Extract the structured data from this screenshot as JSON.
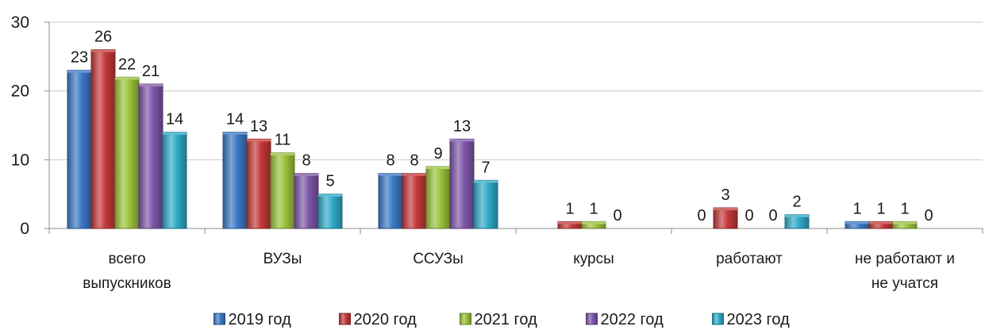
{
  "chart_data": {
    "type": "bar",
    "title": "",
    "xlabel": "",
    "ylabel": "",
    "ylim": [
      0,
      30
    ],
    "yticks": [
      0,
      10,
      20,
      30
    ],
    "grid": true,
    "legend_position": "bottom",
    "categories": [
      [
        "всего",
        "выпускников"
      ],
      [
        "ВУЗы"
      ],
      [
        "ССУЗы"
      ],
      [
        "курсы"
      ],
      [
        "работают"
      ],
      [
        "не работают и",
        "не учатся"
      ]
    ],
    "series": [
      {
        "name": "2019 год",
        "color": "#3a78c4",
        "values": [
          23,
          14,
          8,
          null,
          0,
          1
        ]
      },
      {
        "name": "2020 год",
        "color": "#c43838",
        "values": [
          26,
          13,
          8,
          1,
          3,
          1
        ]
      },
      {
        "name": "2021 год",
        "color": "#9bc23c",
        "values": [
          22,
          11,
          9,
          1,
          0,
          1
        ]
      },
      {
        "name": "2022 год",
        "color": "#7d56a8",
        "values": [
          21,
          8,
          13,
          0,
          0,
          0
        ]
      },
      {
        "name": "2023 год",
        "color": "#2eaac8",
        "values": [
          14,
          5,
          7,
          null,
          2,
          null
        ]
      }
    ]
  }
}
